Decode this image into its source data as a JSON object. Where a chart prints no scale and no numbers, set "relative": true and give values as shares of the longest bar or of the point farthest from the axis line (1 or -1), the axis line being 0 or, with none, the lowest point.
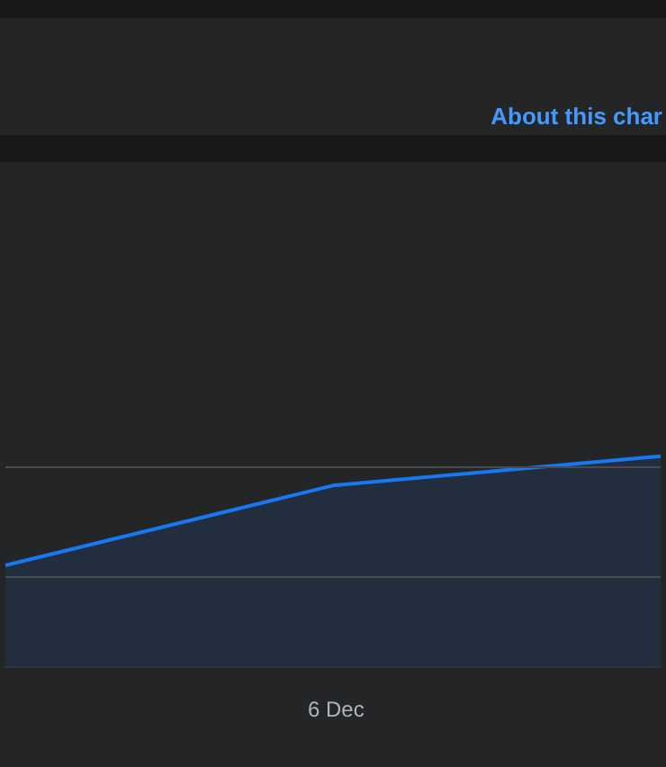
{
  "chart_data": {
    "type": "area",
    "relative": true,
    "categories": [
      null,
      null,
      null
    ],
    "values": [
      0.48,
      0.86,
      1
    ],
    "color": "#1877f2",
    "tick_labels": "x",
    "ref_lines": [
      {
        "axis": "y",
        "value": 0.95,
        "color": "#4a4b4d"
      },
      {
        "axis": "y",
        "value": 0.43,
        "color": "#4a4b4d"
      }
    ],
    "marker": "none",
    "annotations": [
      "About this char",
      "6 Dec"
    ]
  }
}
